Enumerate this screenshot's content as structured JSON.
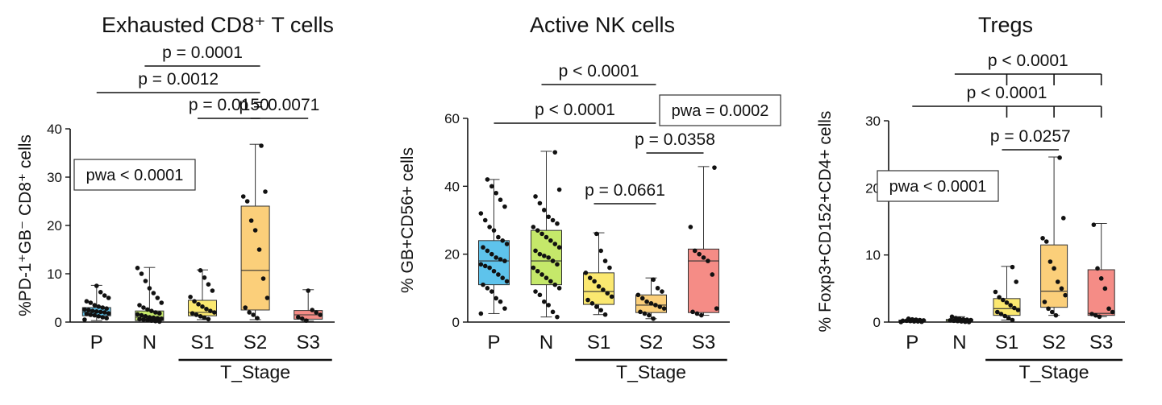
{
  "chart_data": [
    {
      "type": "box",
      "title": "Exhausted CD8⁺ T cells",
      "ylabel": "%PD-1⁺GB⁻ CD8⁺ cells",
      "ylim": [
        0,
        40
      ],
      "yticks": [
        0,
        10,
        20,
        30,
        40
      ],
      "categories": [
        "P",
        "N",
        "S1",
        "S2",
        "S3"
      ],
      "colors": [
        "#5ec3ec",
        "#c5e86a",
        "#fbe870",
        "#fbcf7a",
        "#f58c86"
      ],
      "group_label": "T_Stage",
      "group_members": [
        "S1",
        "S2",
        "S3"
      ],
      "omnibus": "pwa < 0.0001",
      "boxes": [
        {
          "min": 0.3,
          "q1": 1.3,
          "median": 2.0,
          "q3": 3.0,
          "max": 7.6
        },
        {
          "min": 0.1,
          "q1": 0.3,
          "median": 1.0,
          "q3": 2.3,
          "max": 11.3
        },
        {
          "min": 0.5,
          "q1": 1.3,
          "median": 2.0,
          "q3": 4.5,
          "max": 10.8
        },
        {
          "min": 0.5,
          "q1": 2.5,
          "median": 10.7,
          "q3": 24.0,
          "max": 36.8
        },
        {
          "min": 0.2,
          "q1": 0.6,
          "median": 1.5,
          "q3": 2.4,
          "max": 6.7
        }
      ],
      "points": [
        [
          0.5,
          0.8,
          1.0,
          1.2,
          1.4,
          1.5,
          1.7,
          1.8,
          2.0,
          2.1,
          2.2,
          2.3,
          2.5,
          2.6,
          2.8,
          3.0,
          3.2,
          3.5,
          4.0,
          4.3,
          5.0,
          5.5,
          6.2,
          7.5
        ],
        [
          0.1,
          0.2,
          0.3,
          0.4,
          0.5,
          0.6,
          0.7,
          0.8,
          0.9,
          1.0,
          1.2,
          1.4,
          1.6,
          1.8,
          2.0,
          2.3,
          2.6,
          3.0,
          3.5,
          4.0,
          5.0,
          6.0,
          7.0,
          8.5,
          10.0,
          11.2
        ],
        [
          0.6,
          0.9,
          1.2,
          1.5,
          1.8,
          2.0,
          2.3,
          2.7,
          3.2,
          3.7,
          4.3,
          5.2,
          6.5,
          7.8,
          9.2,
          10.7
        ],
        [
          0.8,
          1.5,
          2.0,
          3.0,
          5.0,
          9.0,
          15.0,
          19.0,
          21.0,
          25.0,
          26.0,
          27.0,
          36.5
        ],
        [
          0.3,
          0.7,
          1.0,
          1.5,
          2.0,
          2.5,
          6.5
        ]
      ],
      "comparisons": [
        {
          "a": "S1",
          "b": "S2",
          "label": "p = 0.0150"
        },
        {
          "a": "S2",
          "b": "S3",
          "label": "p = 0.0071"
        },
        {
          "a": "P",
          "b": "S2",
          "label": "p = 0.0012"
        },
        {
          "a": "N",
          "b": "S2",
          "label": "p = 0.0001"
        }
      ]
    },
    {
      "type": "box",
      "title": "Active NK cells",
      "ylabel": "% GB+CD56+ cells",
      "ylim": [
        0,
        60
      ],
      "yticks": [
        0,
        20,
        40,
        60
      ],
      "categories": [
        "P",
        "N",
        "S1",
        "S2",
        "S3"
      ],
      "colors": [
        "#5ec3ec",
        "#c5e86a",
        "#fbe870",
        "#fbcf7a",
        "#f58c86"
      ],
      "group_label": "T_Stage",
      "group_members": [
        "S1",
        "S2",
        "S3"
      ],
      "omnibus": "pwa = 0.0002",
      "boxes": [
        {
          "min": 2.5,
          "q1": 11.0,
          "median": 18.0,
          "q3": 24.0,
          "max": 42.0
        },
        {
          "min": 1.5,
          "q1": 11.0,
          "median": 18.0,
          "q3": 27.0,
          "max": 50.3
        },
        {
          "min": 2.2,
          "q1": 5.2,
          "median": 9.0,
          "q3": 14.5,
          "max": 26.3
        },
        {
          "min": 1.0,
          "q1": 2.8,
          "median": 5.0,
          "q3": 8.0,
          "max": 13.0
        },
        {
          "min": 2.0,
          "q1": 2.8,
          "median": 18.0,
          "q3": 21.5,
          "max": 45.8
        }
      ],
      "points": [
        [
          2.5,
          4,
          6,
          7,
          9,
          10,
          11,
          12,
          13,
          14,
          15,
          16,
          16.5,
          17,
          18,
          18.5,
          19,
          20,
          21,
          22,
          23,
          24,
          25,
          27,
          28,
          30,
          32,
          34,
          36,
          38,
          40,
          42
        ],
        [
          1.5,
          3,
          5,
          6,
          8,
          9,
          10,
          11,
          12,
          13,
          14,
          15,
          16,
          17,
          18,
          19,
          19.5,
          20,
          21,
          22,
          23,
          24,
          25,
          26,
          27,
          28,
          29,
          30,
          31,
          33,
          35,
          37,
          39,
          50
        ],
        [
          2.2,
          3.5,
          4.5,
          5.5,
          6.5,
          7.5,
          8.5,
          9.5,
          10.5,
          12,
          13,
          14.5,
          16,
          18,
          21,
          26
        ],
        [
          1,
          2,
          2.5,
          3,
          4,
          4.5,
          5,
          5.5,
          6,
          7,
          8,
          9,
          10,
          12.5
        ],
        [
          2,
          2.5,
          3,
          4,
          14,
          18,
          19,
          20,
          21,
          28,
          45.5
        ]
      ],
      "comparisons": [
        {
          "a": "S1",
          "b": "S2",
          "label": "p = 0.0661"
        },
        {
          "a": "S2",
          "b": "S3",
          "label": "p = 0.0358"
        },
        {
          "a": "P",
          "b": "S2",
          "label": "p < 0.0001"
        },
        {
          "a": "N",
          "b": "S2",
          "label": "p < 0.0001"
        }
      ]
    },
    {
      "type": "box",
      "title": "Tregs",
      "ylabel": "% Foxp3+CD152+CD4+ cells",
      "ylim": [
        0,
        30
      ],
      "yticks": [
        0,
        10,
        20,
        30
      ],
      "categories": [
        "P",
        "N",
        "S1",
        "S2",
        "S3"
      ],
      "colors": [
        "#5ec3ec",
        "#c5e86a",
        "#fbe870",
        "#fbcf7a",
        "#f58c86"
      ],
      "group_label": "T_Stage",
      "group_members": [
        "S1",
        "S2",
        "S3"
      ],
      "omnibus": "pwa < 0.0001",
      "boxes": [
        {
          "min": 0.0,
          "q1": 0.05,
          "median": 0.15,
          "q3": 0.3,
          "max": 0.5
        },
        {
          "min": 0.0,
          "q1": 0.05,
          "median": 0.2,
          "q3": 0.4,
          "max": 0.8
        },
        {
          "min": 0.3,
          "q1": 1.0,
          "median": 2.0,
          "q3": 3.5,
          "max": 8.3
        },
        {
          "min": 1.0,
          "q1": 2.2,
          "median": 4.6,
          "q3": 11.5,
          "max": 24.6
        },
        {
          "min": 0.8,
          "q1": 1.0,
          "median": 1.3,
          "q3": 7.8,
          "max": 14.7
        }
      ],
      "points": [
        [
          0.0,
          0.05,
          0.1,
          0.1,
          0.15,
          0.2,
          0.2,
          0.25,
          0.3,
          0.35,
          0.4,
          0.5
        ],
        [
          0.0,
          0.05,
          0.1,
          0.15,
          0.2,
          0.25,
          0.3,
          0.35,
          0.4,
          0.5,
          0.6,
          0.8
        ],
        [
          0.3,
          0.6,
          0.9,
          1.2,
          1.5,
          1.8,
          2.1,
          2.5,
          2.9,
          3.3,
          3.7,
          4.5,
          6.0,
          8.2
        ],
        [
          1.0,
          1.5,
          2.0,
          3.0,
          4.0,
          5.0,
          6.0,
          8.0,
          9.0,
          12.0,
          12.5,
          15.5,
          24.5
        ],
        [
          0.8,
          1.0,
          1.2,
          1.5,
          2.0,
          5.0,
          6.5,
          8.0,
          14.5
        ]
      ],
      "comparisons": [
        {
          "a": "S1",
          "b": "S2",
          "label": "p = 0.0257"
        },
        {
          "a": "P",
          "b": "S3",
          "label": "p < 0.0001",
          "ticks": [
            "S1",
            "S2"
          ]
        },
        {
          "a": "N",
          "b": "S3",
          "label": "p < 0.0001",
          "ticks": [
            "S1",
            "S2"
          ]
        }
      ]
    }
  ]
}
